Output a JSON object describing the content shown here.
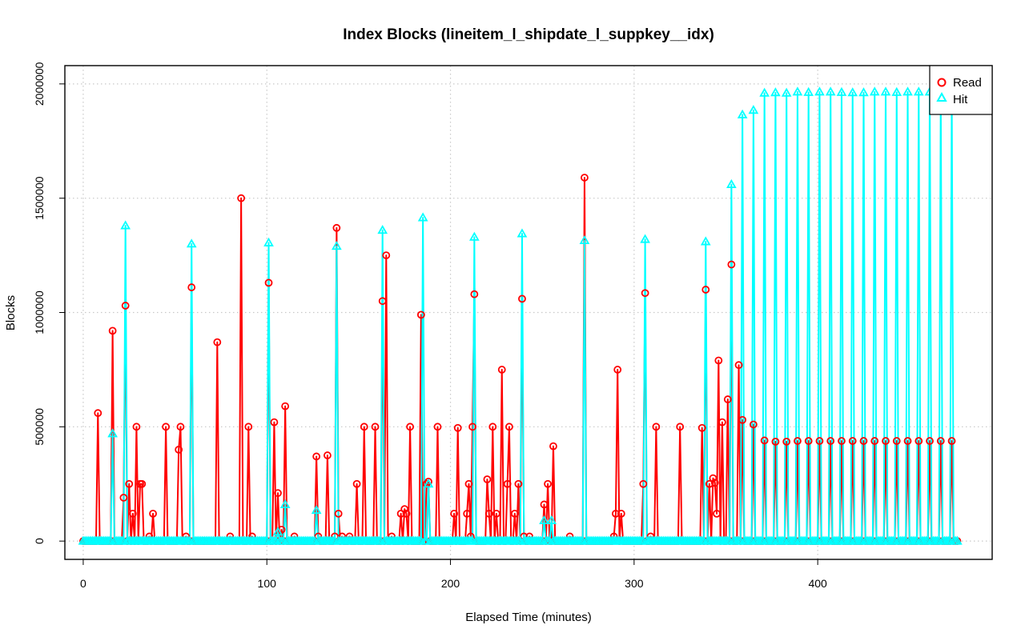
{
  "chart_data": {
    "type": "line",
    "title": "Index Blocks (lineitem_l_shipdate_l_suppkey__idx)",
    "xlabel": "Elapsed Time (minutes)",
    "ylabel": "Blocks",
    "xlim": [
      -10,
      495
    ],
    "ylim": [
      -80000,
      2080000
    ],
    "xticks": [
      0,
      100,
      200,
      300,
      400
    ],
    "yticks": [
      0,
      500000,
      1000000,
      1500000,
      2000000
    ],
    "xtick_labels": [
      "0",
      "100",
      "200",
      "300",
      "400"
    ],
    "ytick_labels": [
      "0",
      "500000",
      "1000000",
      "1500000",
      "2000000"
    ],
    "grid": true,
    "legend_position": "top-right",
    "x_range": [
      0,
      476
    ],
    "series": [
      {
        "name": "Read",
        "color": "#ff0000",
        "marker": "circle",
        "baseline": 0,
        "peaks": [
          [
            8,
            560000
          ],
          [
            16,
            920000
          ],
          [
            22,
            190000
          ],
          [
            23,
            1030000
          ],
          [
            25,
            250000
          ],
          [
            27,
            120000
          ],
          [
            29,
            500000
          ],
          [
            31,
            250000
          ],
          [
            32,
            250000
          ],
          [
            36,
            20000
          ],
          [
            38,
            120000
          ],
          [
            45,
            500000
          ],
          [
            52,
            400000
          ],
          [
            53,
            500000
          ],
          [
            56,
            20000
          ],
          [
            59,
            1110000
          ],
          [
            73,
            870000
          ],
          [
            80,
            20000
          ],
          [
            86,
            1500000
          ],
          [
            90,
            500000
          ],
          [
            92,
            20000
          ],
          [
            101,
            1130000
          ],
          [
            104,
            520000
          ],
          [
            106,
            210000
          ],
          [
            108,
            50000
          ],
          [
            110,
            590000
          ],
          [
            115,
            20000
          ],
          [
            127,
            370000
          ],
          [
            128,
            20000
          ],
          [
            133,
            375000
          ],
          [
            137,
            20000
          ],
          [
            138,
            1370000
          ],
          [
            139,
            120000
          ],
          [
            141,
            20000
          ],
          [
            145,
            20000
          ],
          [
            149,
            250000
          ],
          [
            153,
            500000
          ],
          [
            159,
            500000
          ],
          [
            163,
            1050000
          ],
          [
            165,
            1250000
          ],
          [
            168,
            20000
          ],
          [
            173,
            120000
          ],
          [
            175,
            140000
          ],
          [
            176,
            120000
          ],
          [
            178,
            500000
          ],
          [
            184,
            990000
          ],
          [
            187,
            250000
          ],
          [
            188,
            260000
          ],
          [
            193,
            500000
          ],
          [
            202,
            120000
          ],
          [
            204,
            495000
          ],
          [
            209,
            120000
          ],
          [
            210,
            250000
          ],
          [
            211,
            20000
          ],
          [
            212,
            500000
          ],
          [
            213,
            1080000
          ],
          [
            220,
            270000
          ],
          [
            221,
            120000
          ],
          [
            223,
            500000
          ],
          [
            225,
            120000
          ],
          [
            228,
            750000
          ],
          [
            231,
            250000
          ],
          [
            232,
            500000
          ],
          [
            235,
            120000
          ],
          [
            237,
            250000
          ],
          [
            239,
            1060000
          ],
          [
            240,
            20000
          ],
          [
            243,
            20000
          ],
          [
            251,
            160000
          ],
          [
            253,
            250000
          ],
          [
            256,
            415000
          ],
          [
            265,
            20000
          ],
          [
            273,
            1590000
          ],
          [
            289,
            20000
          ],
          [
            290,
            120000
          ],
          [
            291,
            750000
          ],
          [
            293,
            120000
          ],
          [
            305,
            250000
          ],
          [
            306,
            1085000
          ],
          [
            309,
            20000
          ],
          [
            312,
            500000
          ],
          [
            325,
            500000
          ],
          [
            337,
            495000
          ],
          [
            339,
            1100000
          ],
          [
            341,
            250000
          ],
          [
            343,
            275000
          ],
          [
            344,
            255000
          ],
          [
            345,
            120000
          ],
          [
            346,
            790000
          ],
          [
            348,
            520000
          ],
          [
            351,
            620000
          ],
          [
            353,
            1210000
          ],
          [
            357,
            770000
          ],
          [
            359,
            530000
          ],
          [
            365,
            510000
          ],
          [
            371,
            440000
          ],
          [
            377,
            435000
          ],
          [
            383,
            435000
          ],
          [
            389,
            438000
          ],
          [
            395,
            438000
          ],
          [
            401,
            438000
          ],
          [
            407,
            438000
          ],
          [
            413,
            438000
          ],
          [
            419,
            438000
          ],
          [
            425,
            438000
          ],
          [
            431,
            438000
          ],
          [
            437,
            438000
          ],
          [
            443,
            438000
          ],
          [
            449,
            438000
          ],
          [
            455,
            438000
          ],
          [
            461,
            438000
          ],
          [
            467,
            438000
          ],
          [
            473,
            438000
          ]
        ]
      },
      {
        "name": "Hit",
        "color": "#00ffff",
        "marker": "triangle",
        "baseline": 0,
        "peaks": [
          [
            16,
            470000
          ],
          [
            23,
            1380000
          ],
          [
            59,
            1300000
          ],
          [
            101,
            1305000
          ],
          [
            106,
            40000
          ],
          [
            110,
            160000
          ],
          [
            127,
            135000
          ],
          [
            138,
            1290000
          ],
          [
            163,
            1360000
          ],
          [
            185,
            1415000
          ],
          [
            188,
            250000
          ],
          [
            213,
            1330000
          ],
          [
            239,
            1345000
          ],
          [
            251,
            90000
          ],
          [
            255,
            90000
          ],
          [
            273,
            1315000
          ],
          [
            306,
            1320000
          ],
          [
            339,
            1310000
          ],
          [
            353,
            1560000
          ],
          [
            359,
            1865000
          ],
          [
            365,
            1885000
          ],
          [
            371,
            1960000
          ],
          [
            377,
            1962000
          ],
          [
            383,
            1960000
          ],
          [
            389,
            1965000
          ],
          [
            395,
            1963000
          ],
          [
            401,
            1965000
          ],
          [
            407,
            1965000
          ],
          [
            413,
            1963000
          ],
          [
            419,
            1962000
          ],
          [
            425,
            1962000
          ],
          [
            431,
            1965000
          ],
          [
            437,
            1965000
          ],
          [
            443,
            1963000
          ],
          [
            449,
            1965000
          ],
          [
            455,
            1965000
          ],
          [
            461,
            1965000
          ],
          [
            467,
            1965000
          ],
          [
            473,
            1965000
          ]
        ]
      }
    ]
  }
}
